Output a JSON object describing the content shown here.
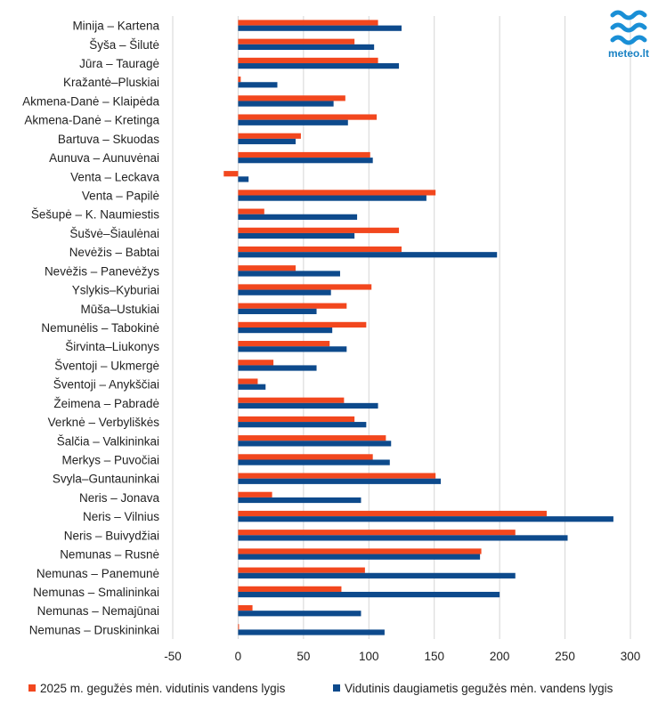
{
  "logo": {
    "text": "meteo.lt",
    "icon": "waves-icon",
    "color": "#1a8fd6"
  },
  "colors": {
    "series1": "#f2471e",
    "series2": "#0d4a8c"
  },
  "chart_data": {
    "type": "bar",
    "orientation": "horizontal",
    "categories": [
      "Minija – Kartena",
      "Šyša – Šilutė",
      "Jūra – Tauragė",
      "Kražantė–Pluskiai",
      "Akmena-Danė – Klaipėda",
      "Akmena-Danė – Kretinga",
      "Bartuva – Skuodas",
      "Aunuva – Aunuvėnai",
      "Venta – Leckava",
      "Venta – Papilė",
      "Šešupė – K. Naumiestis",
      "Šušvė–Šiaulėnai",
      "Nevėžis – Babtai",
      "Nevėžis – Panevėžys",
      "Yslykis–Kyburiai",
      "Mūša–Ustukiai",
      "Nemunėlis – Tabokinė",
      "Širvinta–Liukonys",
      "Šventoji – Ukmergė",
      "Šventoji – Anykščiai",
      "Žeimena – Pabradė",
      "Verknė – Verbyliškės",
      "Šalčia – Valkininkai",
      "Merkys – Puvočiai",
      "Svyla–Guntauninkai",
      "Neris – Jonava",
      "Neris – Vilnius",
      "Neris – Buivydžiai",
      "Nemunas – Rusnė",
      "Nemunas – Panemunė",
      "Nemunas – Smalininkai",
      "Nemunas – Nemajūnai",
      "Nemunas – Druskininkai"
    ],
    "series": [
      {
        "name": "2025 m. gegužės mėn. vidutinis vandens lygis",
        "values": [
          107,
          89,
          107,
          2,
          82,
          106,
          48,
          101,
          -11,
          151,
          20,
          123,
          125,
          44,
          102,
          83,
          98,
          70,
          27,
          15,
          81,
          89,
          113,
          103,
          151,
          26,
          236,
          212,
          186,
          97,
          79,
          11,
          0
        ]
      },
      {
        "name": "Vidutinis daugiametis gegužės mėn. vandens lygis",
        "values": [
          125,
          104,
          123,
          30,
          73,
          84,
          44,
          103,
          8,
          144,
          91,
          89,
          198,
          78,
          71,
          60,
          72,
          83,
          60,
          21,
          107,
          98,
          117,
          116,
          155,
          94,
          287,
          252,
          185,
          212,
          200,
          94,
          112
        ]
      }
    ],
    "xlim": [
      -50,
      300
    ],
    "xticks": [
      -50,
      0,
      50,
      100,
      150,
      200,
      250,
      300
    ],
    "grid": true,
    "legend_position": "bottom"
  }
}
